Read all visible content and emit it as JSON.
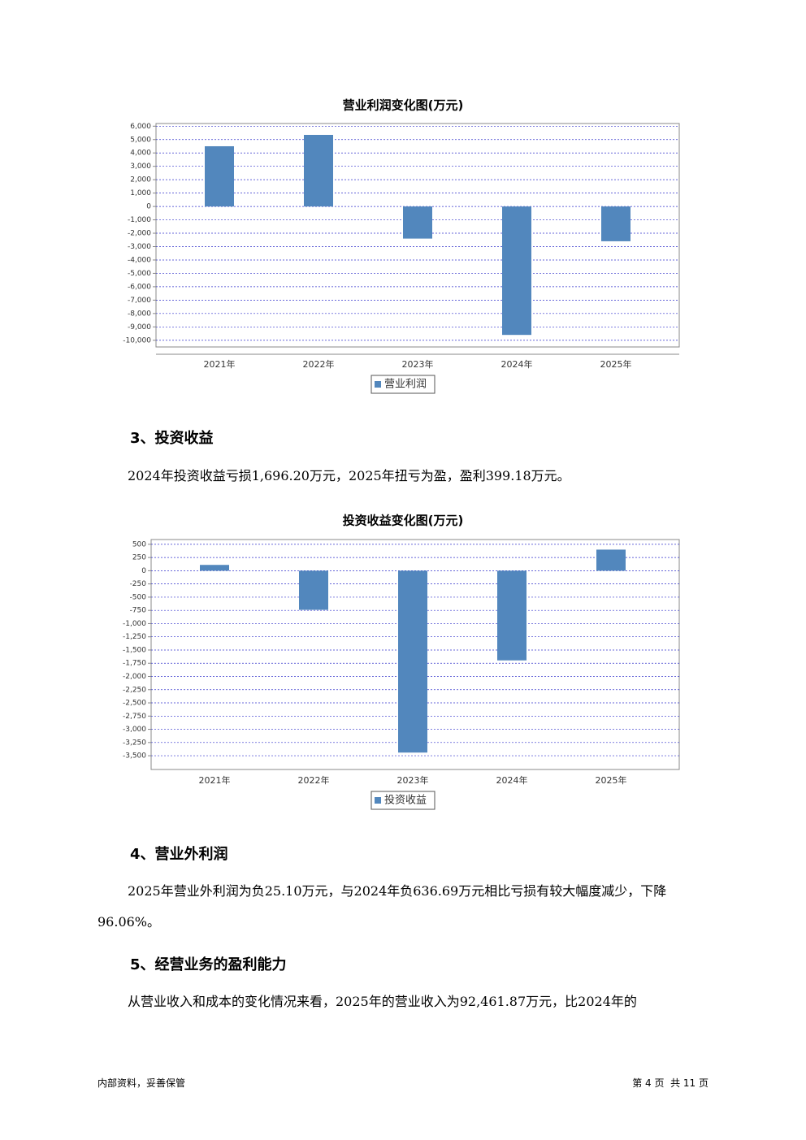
{
  "chart_data": [
    {
      "type": "bar",
      "title": "营业利润变化图(万元)",
      "categories": [
        "2021年",
        "2022年",
        "2023年",
        "2024年",
        "2025年"
      ],
      "series": [
        {
          "name": "营业利润",
          "color": "#5287bd",
          "values": [
            4500,
            5350,
            -2400,
            -9600,
            -2600
          ]
        }
      ],
      "ylim": [
        -10500,
        6200
      ],
      "yticks": [
        {
          "value": 6000,
          "label": "6,000"
        },
        {
          "value": 5000,
          "label": "5,000"
        },
        {
          "value": 4000,
          "label": "4,000"
        },
        {
          "value": 3000,
          "label": "3,000"
        },
        {
          "value": 2000,
          "label": "2,000"
        },
        {
          "value": 1000,
          "label": "1,000"
        },
        0,
        {
          "value": -1000,
          "label": "-1,000"
        },
        {
          "value": -2000,
          "label": "-2,000"
        },
        {
          "value": -3000,
          "label": "-3,000"
        },
        {
          "value": -4000,
          "label": "-4,000"
        },
        {
          "value": -5000,
          "label": "-5,000"
        },
        {
          "value": -6000,
          "label": "-6,000"
        },
        {
          "value": -7000,
          "label": "-7,000"
        },
        {
          "value": -8000,
          "label": "-8,000"
        },
        {
          "value": -9000,
          "label": "-9,000"
        },
        {
          "value": -10000,
          "label": "-10,000"
        }
      ],
      "grid": true
    },
    {
      "type": "bar",
      "title": "投资收益变化图(万元)",
      "categories": [
        "2021年",
        "2022年",
        "2023年",
        "2024年",
        "2025年"
      ],
      "series": [
        {
          "name": "投资收益",
          "color": "#5287bd",
          "values": [
            110,
            -740,
            -3440,
            -1696.2,
            399.18
          ]
        }
      ],
      "ylim": [
        -3760,
        590
      ],
      "yticks": [
        500,
        250,
        0,
        -250,
        -500,
        -750,
        {
          "value": -1000,
          "label": "-1,000"
        },
        {
          "value": -1250,
          "label": "-1,250"
        },
        {
          "value": -1500,
          "label": "-1,500"
        },
        {
          "value": -1750,
          "label": "-1,750"
        },
        {
          "value": -2000,
          "label": "-2,000"
        },
        {
          "value": -2250,
          "label": "-2,250"
        },
        {
          "value": -2500,
          "label": "-2,500"
        },
        {
          "value": -2750,
          "label": "-2,750"
        },
        {
          "value": -3000,
          "label": "-3,000"
        },
        {
          "value": -3250,
          "label": "-3,250"
        },
        {
          "value": -3500,
          "label": "-3,500"
        }
      ],
      "grid": true
    }
  ],
  "sections": [
    {
      "heading": "3、投资收益",
      "paragraph": "2024年投资收益亏损1,696.20万元，2025年扭亏为盈，盈利399.18万元。"
    },
    {
      "heading": "4、营业外利润",
      "paragraph": "2025年营业外利润为负25.10万元，与2024年负636.69万元相比亏损有较大幅度减少，下降96.06%。"
    },
    {
      "heading": "5、经营业务的盈利能力",
      "paragraph": "从营业收入和成本的变化情况来看，2025年的营业收入为92,461.87万元，比2024年的"
    }
  ],
  "footer": {
    "left": "内部资料，妥善保管",
    "right": "第 4 页  共 11 页"
  }
}
